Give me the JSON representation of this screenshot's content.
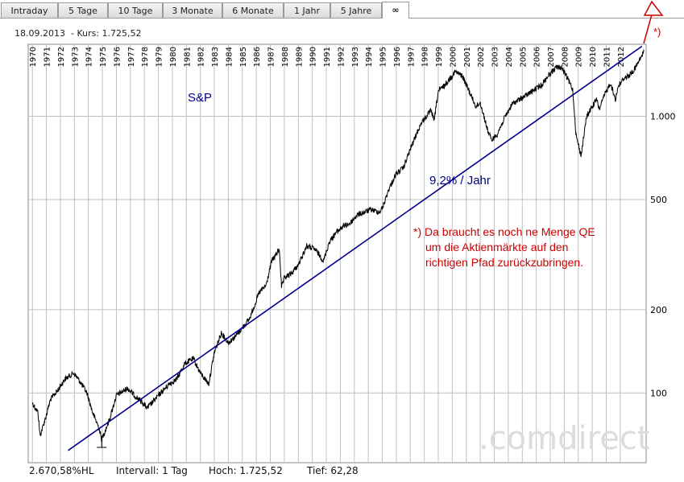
{
  "tabs": [
    "Intraday",
    "5 Tage",
    "10 Tage",
    "3 Monate",
    "6 Monate",
    "1 Jahr",
    "5 Jahre",
    "∞"
  ],
  "active_tab_index": 7,
  "header": {
    "date": "18.09.2013",
    "kurs_text": "- Kurs: 1.725,52"
  },
  "footer": {
    "change": "2.670,58%HL",
    "interval": "Intervall: 1 Tag",
    "high": "Hoch: 1.725,52",
    "low": "Tief: 62,28"
  },
  "watermark": ".comdirect",
  "colors": {
    "price": "#000000",
    "trend": "#00008b",
    "annotation": "#cc0000",
    "grid": "#c0c0c0"
  },
  "chart_data": {
    "type": "line",
    "title": "S&P",
    "y_scale": "log",
    "ylim": [
      56,
      1820
    ],
    "xlim": [
      1969.7,
      2013.85
    ],
    "x_ticks": [
      1970,
      1971,
      1972,
      1973,
      1974,
      1975,
      1976,
      1977,
      1978,
      1979,
      1980,
      1981,
      1982,
      1983,
      1984,
      1985,
      1986,
      1987,
      1988,
      1989,
      1990,
      1991,
      1992,
      1993,
      1994,
      1995,
      1996,
      1997,
      1998,
      1999,
      2000,
      2001,
      2002,
      2003,
      2004,
      2005,
      2006,
      2007,
      2008,
      2009,
      2010,
      2011,
      2012
    ],
    "y_ticks": [
      {
        "value": 100,
        "label": "100"
      },
      {
        "value": 200,
        "label": "200"
      },
      {
        "value": 500,
        "label": "500"
      },
      {
        "value": 1000,
        "label": "1.000"
      }
    ],
    "series": [
      {
        "role": "price",
        "x": [
          1970.0,
          1970.4,
          1970.55,
          1970.9,
          1971.3,
          1971.8,
          1972.3,
          1972.95,
          1973.4,
          1973.9,
          1974.3,
          1974.75,
          1974.95,
          1975.5,
          1976.0,
          1976.8,
          1977.3,
          1977.9,
          1978.2,
          1978.7,
          1979.4,
          1979.8,
          1980.3,
          1980.9,
          1981.5,
          1982.0,
          1982.6,
          1983.0,
          1983.5,
          1984.0,
          1984.5,
          1985.0,
          1985.5,
          1986.2,
          1986.7,
          1987.1,
          1987.65,
          1987.8,
          1988.0,
          1988.5,
          1989.0,
          1989.6,
          1990.2,
          1990.6,
          1990.8,
          1991.2,
          1991.7,
          1992.2,
          1992.7,
          1993.2,
          1993.7,
          1994.2,
          1994.8,
          1995.0,
          1995.5,
          1996.0,
          1996.5,
          1997.0,
          1997.6,
          1997.8,
          1998.5,
          1998.7,
          1999.0,
          1999.5,
          2000.2,
          2000.7,
          2001.0,
          2001.7,
          2002.0,
          2002.5,
          2002.8,
          2003.2,
          2003.8,
          2004.3,
          2004.8,
          2005.3,
          2005.8,
          2006.4,
          2006.8,
          2007.4,
          2007.8,
          2008.2,
          2008.6,
          2008.85,
          2009.2,
          2009.6,
          2010.3,
          2010.5,
          2010.9,
          2011.3,
          2011.65,
          2011.85,
          2012.3,
          2012.6,
          2013.0,
          2013.4,
          2013.7
        ],
        "y": [
          92,
          85,
          70,
          80,
          95,
          102,
          112,
          118,
          110,
          100,
          85,
          75,
          68,
          80,
          98,
          104,
          98,
          92,
          88,
          94,
          103,
          108,
          112,
          128,
          133,
          118,
          108,
          140,
          165,
          152,
          160,
          172,
          185,
          230,
          245,
          300,
          330,
          240,
          260,
          270,
          290,
          340,
          330,
          310,
          300,
          350,
          380,
          400,
          410,
          440,
          450,
          460,
          450,
          465,
          550,
          620,
          650,
          760,
          900,
          950,
          1050,
          960,
          1230,
          1300,
          1450,
          1400,
          1300,
          1080,
          1120,
          900,
          820,
          860,
          1000,
          1110,
          1150,
          1190,
          1240,
          1300,
          1390,
          1500,
          1500,
          1380,
          1250,
          850,
          720,
          1000,
          1150,
          1060,
          1200,
          1320,
          1150,
          1280,
          1380,
          1400,
          1470,
          1600,
          1720
        ]
      },
      {
        "role": "trend",
        "name": "9,2% / Jahr",
        "x": [
          1972.55,
          2013.55
        ],
        "y": [
          62,
          1790
        ]
      }
    ],
    "annotations": [
      {
        "text": "9,2% / Jahr",
        "color": "#00008b"
      },
      {
        "lines": [
          "*) Da braucht es noch ne Menge QE",
          "um die Aktienmärkte auf den",
          "richtigen Pfad zurückzubringen."
        ],
        "color": "#cc0000"
      },
      {
        "text": "*)",
        "color": "#cc0000"
      }
    ]
  }
}
